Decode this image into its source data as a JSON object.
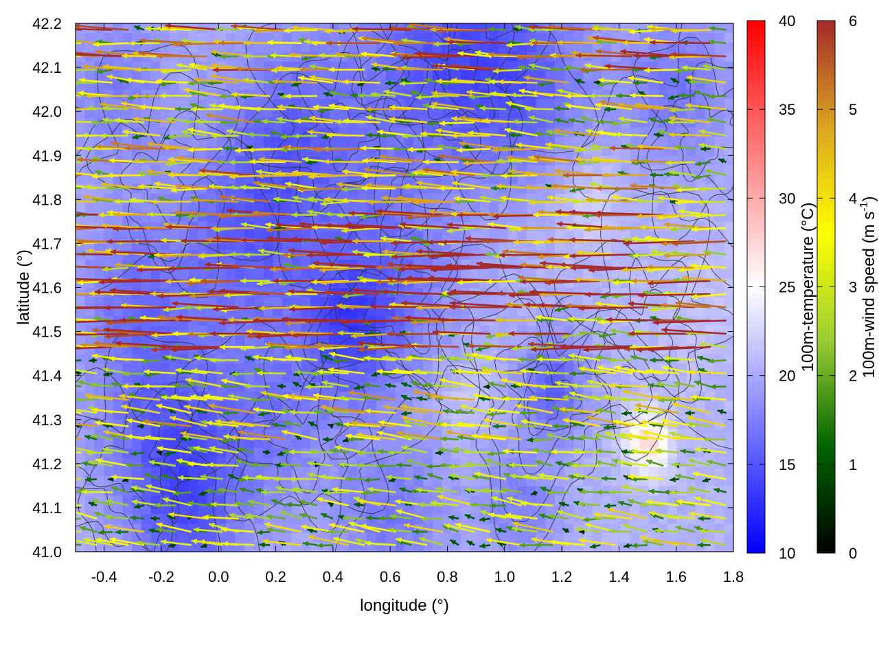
{
  "chart_data": {
    "type": "heatmap",
    "xlabel": "longitude (°)",
    "ylabel": "latitude (°)",
    "xlim": [
      -0.5,
      1.8
    ],
    "ylim": [
      41.0,
      42.2
    ],
    "xticks": [
      "-0.4",
      "-0.2",
      "0.0",
      "0.2",
      "0.4",
      "0.6",
      "0.8",
      "1.0",
      "1.2",
      "1.4",
      "1.6",
      "1.8"
    ],
    "yticks": [
      "41.0",
      "41.1",
      "41.2",
      "41.3",
      "41.4",
      "41.5",
      "41.6",
      "41.7",
      "41.8",
      "41.9",
      "42.0",
      "42.1",
      "42.2"
    ],
    "grid": true,
    "temperature_colorbar": {
      "label": "100m-temperature (°C)",
      "range": [
        10,
        40
      ],
      "ticks": [
        "10",
        "15",
        "20",
        "25",
        "30",
        "35",
        "40"
      ],
      "colors": [
        "#0000ff",
        "#ffffff",
        "#ff0000"
      ]
    },
    "wind_colorbar": {
      "label_main": "100m-wind speed (m s",
      "label_sup": "-1",
      "label_close": ")",
      "range": [
        0,
        6
      ],
      "ticks": [
        "0",
        "1",
        "2",
        "3",
        "4",
        "5",
        "6"
      ],
      "colors": [
        "#000000",
        "#006400",
        "#9acd32",
        "#ffff00",
        "#daa520",
        "#a52a2a"
      ]
    },
    "temperature_field": {
      "background_celsius": 20.5,
      "anomalies": [
        {
          "lon": -0.35,
          "lat": 42.05,
          "celsius": 17.5,
          "radius_deg": 0.2
        },
        {
          "lon": 0.3,
          "lat": 41.98,
          "celsius": 16.5,
          "radius_deg": 0.25
        },
        {
          "lon": 0.75,
          "lat": 42.12,
          "celsius": 16.0,
          "radius_deg": 0.25
        },
        {
          "lon": 1.05,
          "lat": 42.08,
          "celsius": 15.5,
          "radius_deg": 0.25
        },
        {
          "lon": 1.6,
          "lat": 42.05,
          "celsius": 17.0,
          "radius_deg": 0.2
        },
        {
          "lon": 0.1,
          "lat": 41.72,
          "celsius": 16.0,
          "radius_deg": 0.25
        },
        {
          "lon": 0.6,
          "lat": 41.62,
          "celsius": 16.5,
          "radius_deg": 0.25
        },
        {
          "lon": 0.45,
          "lat": 41.5,
          "celsius": 16.0,
          "radius_deg": 0.15
        },
        {
          "lon": -0.3,
          "lat": 41.6,
          "celsius": 17.5,
          "radius_deg": 0.2
        },
        {
          "lon": -0.2,
          "lat": 41.3,
          "celsius": 16.5,
          "radius_deg": 0.25
        },
        {
          "lon": 0.2,
          "lat": 41.3,
          "celsius": 17.5,
          "radius_deg": 0.2
        },
        {
          "lon": 1.17,
          "lat": 41.38,
          "celsius": 15.5,
          "radius_deg": 0.12
        },
        {
          "lon": -0.1,
          "lat": 41.1,
          "celsius": 16.0,
          "radius_deg": 0.2
        },
        {
          "lon": 0.6,
          "lat": 41.08,
          "celsius": 17.0,
          "radius_deg": 0.2
        },
        {
          "lon": 1.05,
          "lat": 41.1,
          "celsius": 17.5,
          "radius_deg": 0.15
        },
        {
          "lon": 1.3,
          "lat": 41.8,
          "celsius": 22.5,
          "radius_deg": 0.12
        },
        {
          "lon": 1.5,
          "lat": 41.25,
          "celsius": 27.0,
          "radius_deg": 0.08
        },
        {
          "lon": 1.7,
          "lat": 41.55,
          "celsius": 21.5,
          "radius_deg": 0.15
        },
        {
          "lon": 0.85,
          "lat": 41.35,
          "celsius": 22.0,
          "radius_deg": 0.1
        }
      ]
    },
    "wind_vectors": [
      {
        "lat": 42.15,
        "u": -4.5,
        "v": 0.2
      },
      {
        "lat": 42.0,
        "u": -3.5,
        "v": 0.3
      },
      {
        "lat": 41.85,
        "u": -4.0,
        "v": 0.2
      },
      {
        "lat": 41.7,
        "u": -5.5,
        "v": 0.1
      },
      {
        "lat": 41.6,
        "u": -5.8,
        "v": 0.1
      },
      {
        "lat": 41.5,
        "u": -5.5,
        "v": 0.05
      },
      {
        "lat": 41.4,
        "u": -3.0,
        "v": 0.3
      },
      {
        "lat": 41.3,
        "u": -3.5,
        "v": 0.5
      },
      {
        "lat": 41.2,
        "u": -2.5,
        "v": 0.3
      },
      {
        "lat": 41.05,
        "u": -3.0,
        "v": 0.5
      }
    ],
    "topography_contours": true
  }
}
